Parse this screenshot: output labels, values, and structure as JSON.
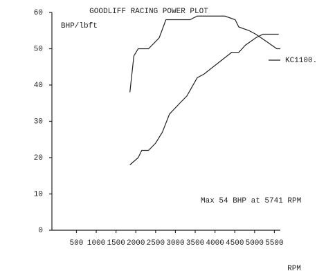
{
  "chart_data": {
    "type": "line",
    "title": "GOODLIFF RACING POWER PLOT",
    "y_label": "BHP/lbft",
    "x_label": "RPM",
    "annotations": [
      "KC1100.",
      "Max 54 BHP at 5741 RPM"
    ],
    "xlim": [
      -120,
      5650
    ],
    "ylim": [
      0,
      60
    ],
    "xticks": [
      500,
      1000,
      1500,
      2000,
      2500,
      3000,
      3500,
      4000,
      4500,
      5000,
      5500
    ],
    "yticks": [
      0,
      10,
      20,
      30,
      40,
      50,
      60
    ],
    "series": [
      {
        "color": "#222222",
        "x": [
          1850,
          1950,
          2060,
          2320,
          2590,
          2760,
          3370,
          3550,
          4250,
          4510,
          4600,
          4860,
          5030,
          5300,
          5560,
          5650
        ],
        "values": [
          38,
          48,
          50,
          50,
          53,
          58,
          58,
          59,
          59,
          58,
          56,
          55,
          54,
          52,
          50,
          50
        ]
      },
      {
        "color": "#222222",
        "x": [
          1850,
          2060,
          2150,
          2320,
          2500,
          2670,
          2850,
          3110,
          3290,
          3550,
          3720,
          4070,
          4420,
          4600,
          4770,
          5030,
          5210,
          5610
        ],
        "values": [
          18,
          20,
          22,
          22,
          24,
          27,
          32,
          35,
          37,
          42,
          43,
          46,
          49,
          49,
          51,
          53,
          54,
          54
        ]
      }
    ]
  }
}
